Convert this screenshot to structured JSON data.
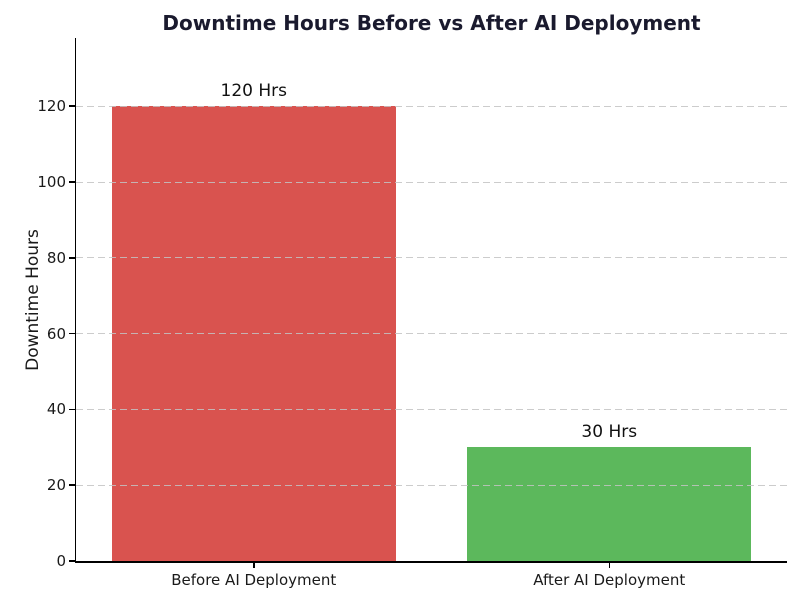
{
  "chart_data": {
    "type": "bar",
    "title": "Downtime Hours Before vs After AI Deployment",
    "ylabel": "Downtime Hours",
    "xlabel": "",
    "categories": [
      "Before AI Deployment",
      "After AI Deployment"
    ],
    "values": [
      120,
      30
    ],
    "bar_labels": [
      "120 Hrs",
      "30 Hrs"
    ],
    "bar_colors": [
      "#d9534f",
      "#5cb85c"
    ],
    "yticks": [
      0,
      20,
      40,
      60,
      80,
      100,
      120
    ],
    "ylim": [
      0,
      138
    ],
    "bar_width_fraction": 0.8,
    "grid": "horizontal-dashed-over-bars",
    "legend": "none",
    "colors": {
      "title": "#1a1a2e",
      "axis": "#000000",
      "tick_label": "#1a1a1a",
      "gridline": "#c3c3c3",
      "annotation": "#111111",
      "background": "#ffffff"
    }
  }
}
